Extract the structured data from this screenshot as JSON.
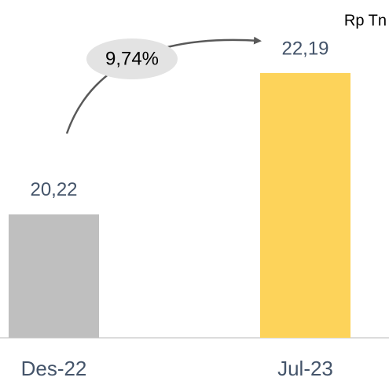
{
  "chart_data": {
    "type": "bar",
    "unit": "Rp Tn",
    "annotation": "9,74%",
    "categories": [
      "Des-22",
      "Jul-23"
    ],
    "values": [
      20.22,
      22.19
    ],
    "value_labels": [
      "20,22",
      "22,19"
    ],
    "colors": [
      "#bfbfbf",
      "#fdd35a"
    ],
    "ylim": [
      18.5,
      22.2
    ]
  }
}
